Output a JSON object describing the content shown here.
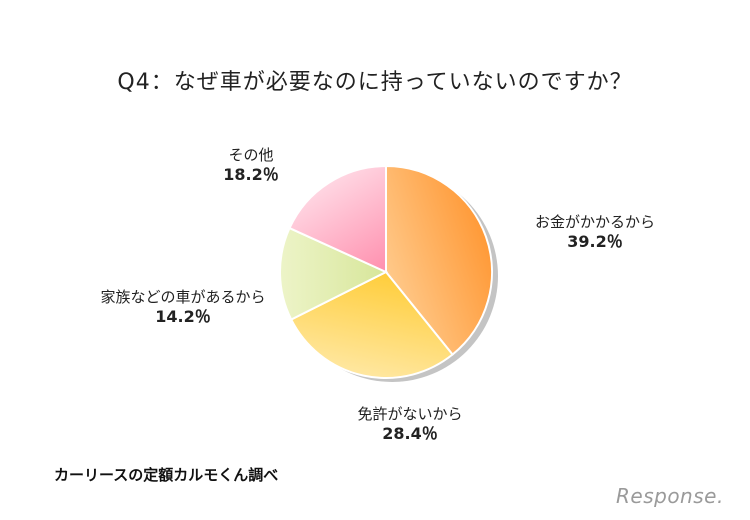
{
  "chart_data": {
    "type": "pie",
    "title": "Q4：なぜ車が必要なのに持っていないのですか？",
    "slices": [
      {
        "label": "お金がかかるから",
        "value": 39.2,
        "display": "39.2％",
        "color_start": "#ffc98a",
        "color_end": "#ff9a38"
      },
      {
        "label": "免許がないから",
        "value": 28.4,
        "display": "28.4％",
        "color_start": "#ffcd3a",
        "color_end": "#ffe7a0"
      },
      {
        "label": "家族などの車があるから",
        "value": 14.2,
        "display": "14.2％",
        "color_start": "#d7e69a",
        "color_end": "#edf4c8"
      },
      {
        "label": "その他",
        "value": 18.2,
        "display": "18.2％",
        "color_start": "#ff8fae",
        "color_end": "#ffd6e2"
      }
    ],
    "start_angle": "12 o'clock",
    "direction": "clockwise"
  },
  "source": "カーリースの定額カルモくん調べ",
  "watermark": "Response."
}
